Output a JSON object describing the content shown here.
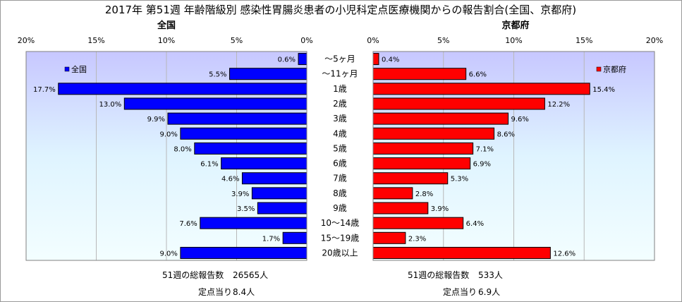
{
  "title": "2017年 第51週 年齢階級別 感染性胃腸炎患者の小児科定点医療機関からの報告割合(全国、京都府)",
  "chart_data": {
    "type": "bar",
    "orientation": "horizontal",
    "layout": "population-pyramid",
    "categories": [
      "～5ヶ月",
      "～11ヶ月",
      "1歳",
      "2歳",
      "3歳",
      "4歳",
      "5歳",
      "6歳",
      "7歳",
      "8歳",
      "9歳",
      "10～14歳",
      "15～19歳",
      "20歳以上"
    ],
    "xlim": [
      0,
      20
    ],
    "xticks": [
      0,
      5,
      10,
      15,
      20
    ],
    "tick_suffix": "%",
    "grid": true,
    "series": [
      {
        "name": "全国",
        "side": "left",
        "color": "#0000ff",
        "values": [
          0.6,
          5.5,
          17.7,
          13.0,
          9.9,
          9.0,
          8.0,
          6.1,
          4.6,
          3.9,
          3.5,
          7.6,
          1.7,
          9.0
        ],
        "labels": [
          "0.6%",
          "5.5%",
          "17.7%",
          "13.0%",
          "9.9%",
          "9.0%",
          "8.0%",
          "6.1%",
          "4.6%",
          "3.9%",
          "3.5%",
          "7.6%",
          "1.7%",
          "9.0%"
        ],
        "legend_position": "top-left"
      },
      {
        "name": "京都府",
        "side": "right",
        "color": "#ff0000",
        "values": [
          0.4,
          6.6,
          15.4,
          12.2,
          9.6,
          8.6,
          7.1,
          6.9,
          5.3,
          2.8,
          3.9,
          6.4,
          2.3,
          12.6
        ],
        "labels": [
          "0.4%",
          "6.6%",
          "15.4%",
          "12.2%",
          "9.6%",
          "8.6%",
          "7.1%",
          "6.9%",
          "5.3%",
          "2.8%",
          "3.9%",
          "6.4%",
          "2.3%",
          "12.6%"
        ],
        "legend_position": "top-right"
      }
    ]
  },
  "panels": {
    "left_title": "全国",
    "right_title": "京都府"
  },
  "footer": {
    "left": {
      "total_label": "51週の総報告数",
      "total_value": "26565人",
      "per_label": "定点当り",
      "per_value": "8.4人"
    },
    "right": {
      "total_label": "51週の総報告数",
      "total_value": "533人",
      "per_label": "定点当り",
      "per_value": "6.9人"
    }
  }
}
